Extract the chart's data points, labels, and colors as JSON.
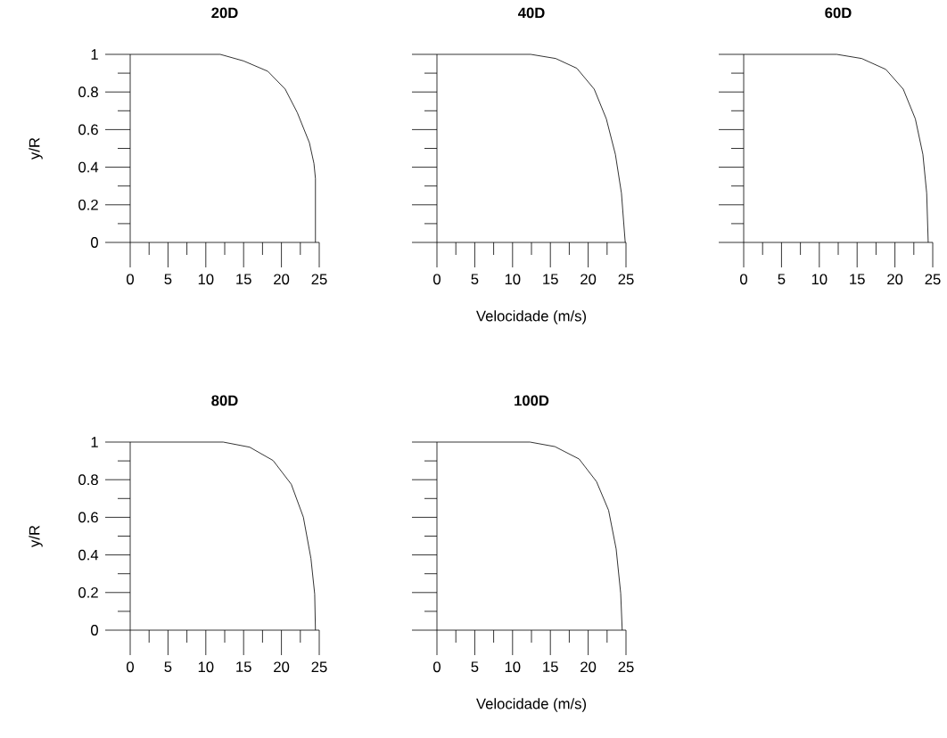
{
  "chart_data": [
    {
      "type": "line",
      "title": "20D",
      "ylabel": "y/R",
      "x": [
        0,
        11.9,
        15.0,
        18.2,
        20.5,
        22.1,
        23.7,
        24.3,
        24.5,
        24.5
      ],
      "values": [
        1,
        1,
        0.965,
        0.91,
        0.815,
        0.69,
        0.53,
        0.42,
        0.34,
        0
      ],
      "color": "#000000",
      "marker": "none",
      "xlim": [
        0,
        25
      ],
      "ylim": [
        0,
        1
      ],
      "xticks": [
        0,
        {
          "value": 2.5,
          "label": null
        },
        5,
        {
          "value": 7.5,
          "label": null
        },
        10,
        {
          "value": 12.5,
          "label": null
        },
        15,
        {
          "value": 17.5,
          "label": null
        },
        20,
        {
          "value": 22.5,
          "label": null
        },
        25
      ],
      "yticks": [
        0,
        {
          "value": 0.1,
          "label": null
        },
        0.2,
        {
          "value": 0.3,
          "label": null
        },
        0.4,
        {
          "value": 0.5,
          "label": null
        },
        0.6,
        {
          "value": 0.7,
          "label": null
        },
        0.8,
        {
          "value": 0.9,
          "label": null
        },
        1
      ]
    },
    {
      "type": "line",
      "title": "40D",
      "xlabel": "Velocidade (m/s)",
      "x": [
        0,
        12.4,
        15.7,
        18.5,
        20.8,
        22.4,
        23.6,
        24.4,
        24.9
      ],
      "values": [
        1,
        1,
        0.978,
        0.926,
        0.815,
        0.657,
        0.468,
        0.262,
        0
      ],
      "color": "#000000",
      "marker": "none",
      "xlim": [
        0,
        25
      ],
      "ylim": [
        0,
        1
      ],
      "tick_labels": "x",
      "xticks": [
        0,
        {
          "value": 2.5,
          "label": null
        },
        5,
        {
          "value": 7.5,
          "label": null
        },
        10,
        {
          "value": 12.5,
          "label": null
        },
        15,
        {
          "value": 17.5,
          "label": null
        },
        20,
        {
          "value": 22.5,
          "label": null
        },
        25
      ],
      "yticks": [
        0,
        {
          "value": 0.1,
          "label": null
        },
        0.2,
        {
          "value": 0.3,
          "label": null
        },
        0.4,
        {
          "value": 0.5,
          "label": null
        },
        0.6,
        {
          "value": 0.7,
          "label": null
        },
        0.8,
        {
          "value": 0.9,
          "label": null
        },
        1
      ]
    },
    {
      "type": "line",
      "title": "60D",
      "x": [
        0,
        12.3,
        15.6,
        18.8,
        21.1,
        22.7,
        23.7,
        24.2,
        24.4
      ],
      "values": [
        1,
        1,
        0.978,
        0.92,
        0.815,
        0.657,
        0.468,
        0.262,
        0
      ],
      "color": "#000000",
      "marker": "none",
      "xlim": [
        0,
        25
      ],
      "ylim": [
        0,
        1
      ],
      "tick_labels": "x",
      "xticks": [
        0,
        {
          "value": 2.5,
          "label": null
        },
        5,
        {
          "value": 7.5,
          "label": null
        },
        10,
        {
          "value": 12.5,
          "label": null
        },
        15,
        {
          "value": 17.5,
          "label": null
        },
        20,
        {
          "value": 22.5,
          "label": null
        },
        25
      ],
      "yticks": [
        0,
        {
          "value": 0.1,
          "label": null
        },
        0.2,
        {
          "value": 0.3,
          "label": null
        },
        0.4,
        {
          "value": 0.5,
          "label": null
        },
        0.6,
        {
          "value": 0.7,
          "label": null
        },
        0.8,
        {
          "value": 0.9,
          "label": null
        },
        1
      ]
    },
    {
      "type": "line",
      "title": "80D",
      "ylabel": "y/R",
      "x": [
        0,
        12.3,
        15.8,
        18.9,
        21.3,
        22.9,
        23.9,
        24.4,
        24.5
      ],
      "values": [
        1,
        1,
        0.973,
        0.902,
        0.776,
        0.601,
        0.382,
        0.192,
        0
      ],
      "color": "#000000",
      "marker": "none",
      "xlim": [
        0,
        25
      ],
      "ylim": [
        0,
        1
      ],
      "xticks": [
        0,
        {
          "value": 2.5,
          "label": null
        },
        5,
        {
          "value": 7.5,
          "label": null
        },
        10,
        {
          "value": 12.5,
          "label": null
        },
        15,
        {
          "value": 17.5,
          "label": null
        },
        20,
        {
          "value": 22.5,
          "label": null
        },
        25
      ],
      "yticks": [
        0,
        {
          "value": 0.1,
          "label": null
        },
        0.2,
        {
          "value": 0.3,
          "label": null
        },
        0.4,
        {
          "value": 0.5,
          "label": null
        },
        0.6,
        {
          "value": 0.7,
          "label": null
        },
        0.8,
        {
          "value": 0.9,
          "label": null
        },
        1
      ]
    },
    {
      "type": "line",
      "title": "100D",
      "xlabel": "Velocidade (m/s)",
      "x": [
        0,
        12.3,
        15.6,
        18.8,
        21.1,
        22.7,
        23.7,
        24.3,
        24.5
      ],
      "values": [
        1,
        1,
        0.976,
        0.91,
        0.79,
        0.637,
        0.432,
        0.196,
        0
      ],
      "color": "#000000",
      "marker": "none",
      "xlim": [
        0,
        25
      ],
      "ylim": [
        0,
        1
      ],
      "tick_labels": "x",
      "xticks": [
        0,
        {
          "value": 2.5,
          "label": null
        },
        5,
        {
          "value": 7.5,
          "label": null
        },
        10,
        {
          "value": 12.5,
          "label": null
        },
        15,
        {
          "value": 17.5,
          "label": null
        },
        20,
        {
          "value": 22.5,
          "label": null
        },
        25
      ],
      "yticks": [
        0,
        {
          "value": 0.1,
          "label": null
        },
        0.2,
        {
          "value": 0.3,
          "label": null
        },
        0.4,
        {
          "value": 0.5,
          "label": null
        },
        0.6,
        {
          "value": 0.7,
          "label": null
        },
        0.8,
        {
          "value": 0.9,
          "label": null
        },
        1
      ]
    }
  ]
}
